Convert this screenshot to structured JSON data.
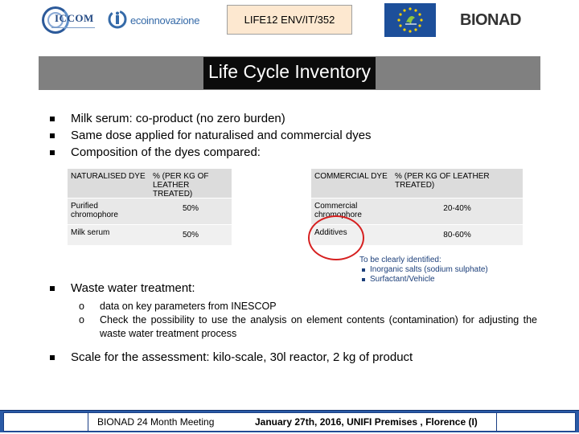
{
  "header": {
    "iccom_logo": {
      "name": "ICCOM",
      "icon": "iccom-logo"
    },
    "eco_logo": {
      "name": "ecoinnovazione",
      "icon": "ecoinnovazione-logo"
    },
    "project_code": "LIFE12 ENV/IT/352",
    "eu_logo": {
      "icon": "eu-life-logo"
    },
    "bionad_logo": {
      "name": "BIONAD",
      "icon": "bionad-logo"
    }
  },
  "title": "Life Cycle Inventory",
  "bullets": [
    "Milk serum: co-product (no zero burden)",
    "Same dose applied for naturalised and commercial dyes",
    "Composition of the dyes compared:"
  ],
  "table": {
    "headers": [
      "NATURALISED DYE",
      "% (PER KG OF LEATHER TREATED)",
      "COMMERCIAL DYE",
      "% (PER KG OF LEATHER TREATED)"
    ],
    "rows": [
      [
        "Purified chromophore",
        "50%",
        "Commercial chromophore",
        "20-40%"
      ],
      [
        "Milk serum",
        "50%",
        "Additives",
        "80-60%"
      ]
    ]
  },
  "note": {
    "title": "To be clearly identified:",
    "items": [
      "Inorganic salts (sodium sulphate)",
      "Surfactant/Vehicle"
    ]
  },
  "waste": {
    "label": "Waste water treatment:",
    "items": [
      "data on key parameters from INESCOP",
      "Check the possibility to use the analysis on element contents (contamination) for adjusting the waste water treatment process"
    ]
  },
  "scale": "Scale for the assessment: kilo-scale, 30l reactor, 2 kg of product",
  "footer": {
    "meeting": "BIONAD   24 Month Meeting",
    "date_place": "January 27th, 2016,  UNIFI  Premises ,  Florence (I)"
  },
  "colors": {
    "title_bar": "#808080",
    "title_bg": "#0b0b0b",
    "project_box": "#fde8d0",
    "footer_blue": "#2a5aa6",
    "highlight_circle": "#d62020",
    "note_text": "#1c3f7a"
  }
}
